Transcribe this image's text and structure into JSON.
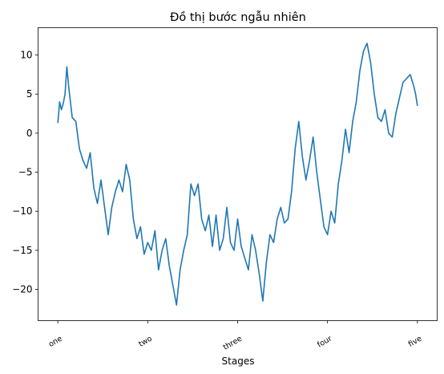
{
  "chart_data": {
    "type": "line",
    "title": "Đồ thị bước ngẫu nhiên",
    "xlabel": "Stages",
    "ylabel": "",
    "xlim": [
      -55,
      1055
    ],
    "ylim": [
      -24,
      13.5
    ],
    "yticks": [
      -20,
      -15,
      -10,
      -5,
      0,
      5,
      10
    ],
    "xticks": [
      0,
      250,
      500,
      750,
      1000
    ],
    "xtick_labels": [
      "one",
      "two",
      "three",
      "four",
      "five"
    ],
    "grid": false,
    "series": [
      {
        "color": "#1f77b4",
        "x": [
          0,
          5,
          10,
          15,
          20,
          25,
          30,
          40,
          50,
          60,
          70,
          80,
          90,
          100,
          110,
          120,
          130,
          140,
          150,
          160,
          170,
          180,
          190,
          200,
          210,
          220,
          230,
          240,
          250,
          260,
          270,
          280,
          290,
          300,
          310,
          320,
          330,
          340,
          350,
          360,
          370,
          380,
          390,
          400,
          410,
          420,
          430,
          440,
          450,
          460,
          470,
          480,
          490,
          500,
          510,
          520,
          530,
          540,
          550,
          560,
          570,
          580,
          590,
          600,
          610,
          620,
          630,
          640,
          650,
          660,
          670,
          680,
          690,
          700,
          710,
          720,
          730,
          740,
          750,
          760,
          770,
          780,
          790,
          800,
          810,
          820,
          830,
          840,
          850,
          860,
          870,
          880,
          890,
          900,
          910,
          920,
          930,
          940,
          950,
          960,
          970,
          980,
          990,
          995,
          1000
        ],
        "y": [
          1.3,
          4.0,
          3.0,
          3.8,
          5.0,
          8.5,
          6.0,
          2.0,
          1.5,
          -2.0,
          -3.5,
          -4.5,
          -2.5,
          -7.0,
          -9.0,
          -6.0,
          -9.5,
          -13.0,
          -9.5,
          -7.5,
          -6.0,
          -7.5,
          -4.0,
          -6.0,
          -11.0,
          -13.5,
          -12.0,
          -15.5,
          -14.0,
          -15.0,
          -12.5,
          -17.5,
          -15.0,
          -13.5,
          -17.0,
          -19.5,
          -22.0,
          -17.5,
          -15.0,
          -13.0,
          -6.5,
          -8.0,
          -6.5,
          -11.0,
          -12.5,
          -10.5,
          -14.5,
          -10.5,
          -15.0,
          -13.5,
          -9.5,
          -14.0,
          -15.0,
          -11.0,
          -14.5,
          -16.0,
          -17.5,
          -13.0,
          -15.0,
          -18.0,
          -21.5,
          -16.5,
          -13.0,
          -14.0,
          -11.0,
          -9.5,
          -11.5,
          -11.0,
          -7.5,
          -2.0,
          1.5,
          -3.0,
          -6.0,
          -3.5,
          -0.5,
          -5.0,
          -8.5,
          -12.0,
          -13.0,
          -10.0,
          -11.5,
          -6.5,
          -3.5,
          0.5,
          -2.5,
          1.5,
          4.0,
          8.0,
          10.5,
          11.5,
          9.0,
          5.0,
          2.0,
          1.5,
          3.0,
          0.0,
          -0.5,
          2.5,
          4.5,
          6.5,
          7.0,
          7.5,
          6.0,
          5.0,
          3.5
        ]
      }
    ]
  }
}
